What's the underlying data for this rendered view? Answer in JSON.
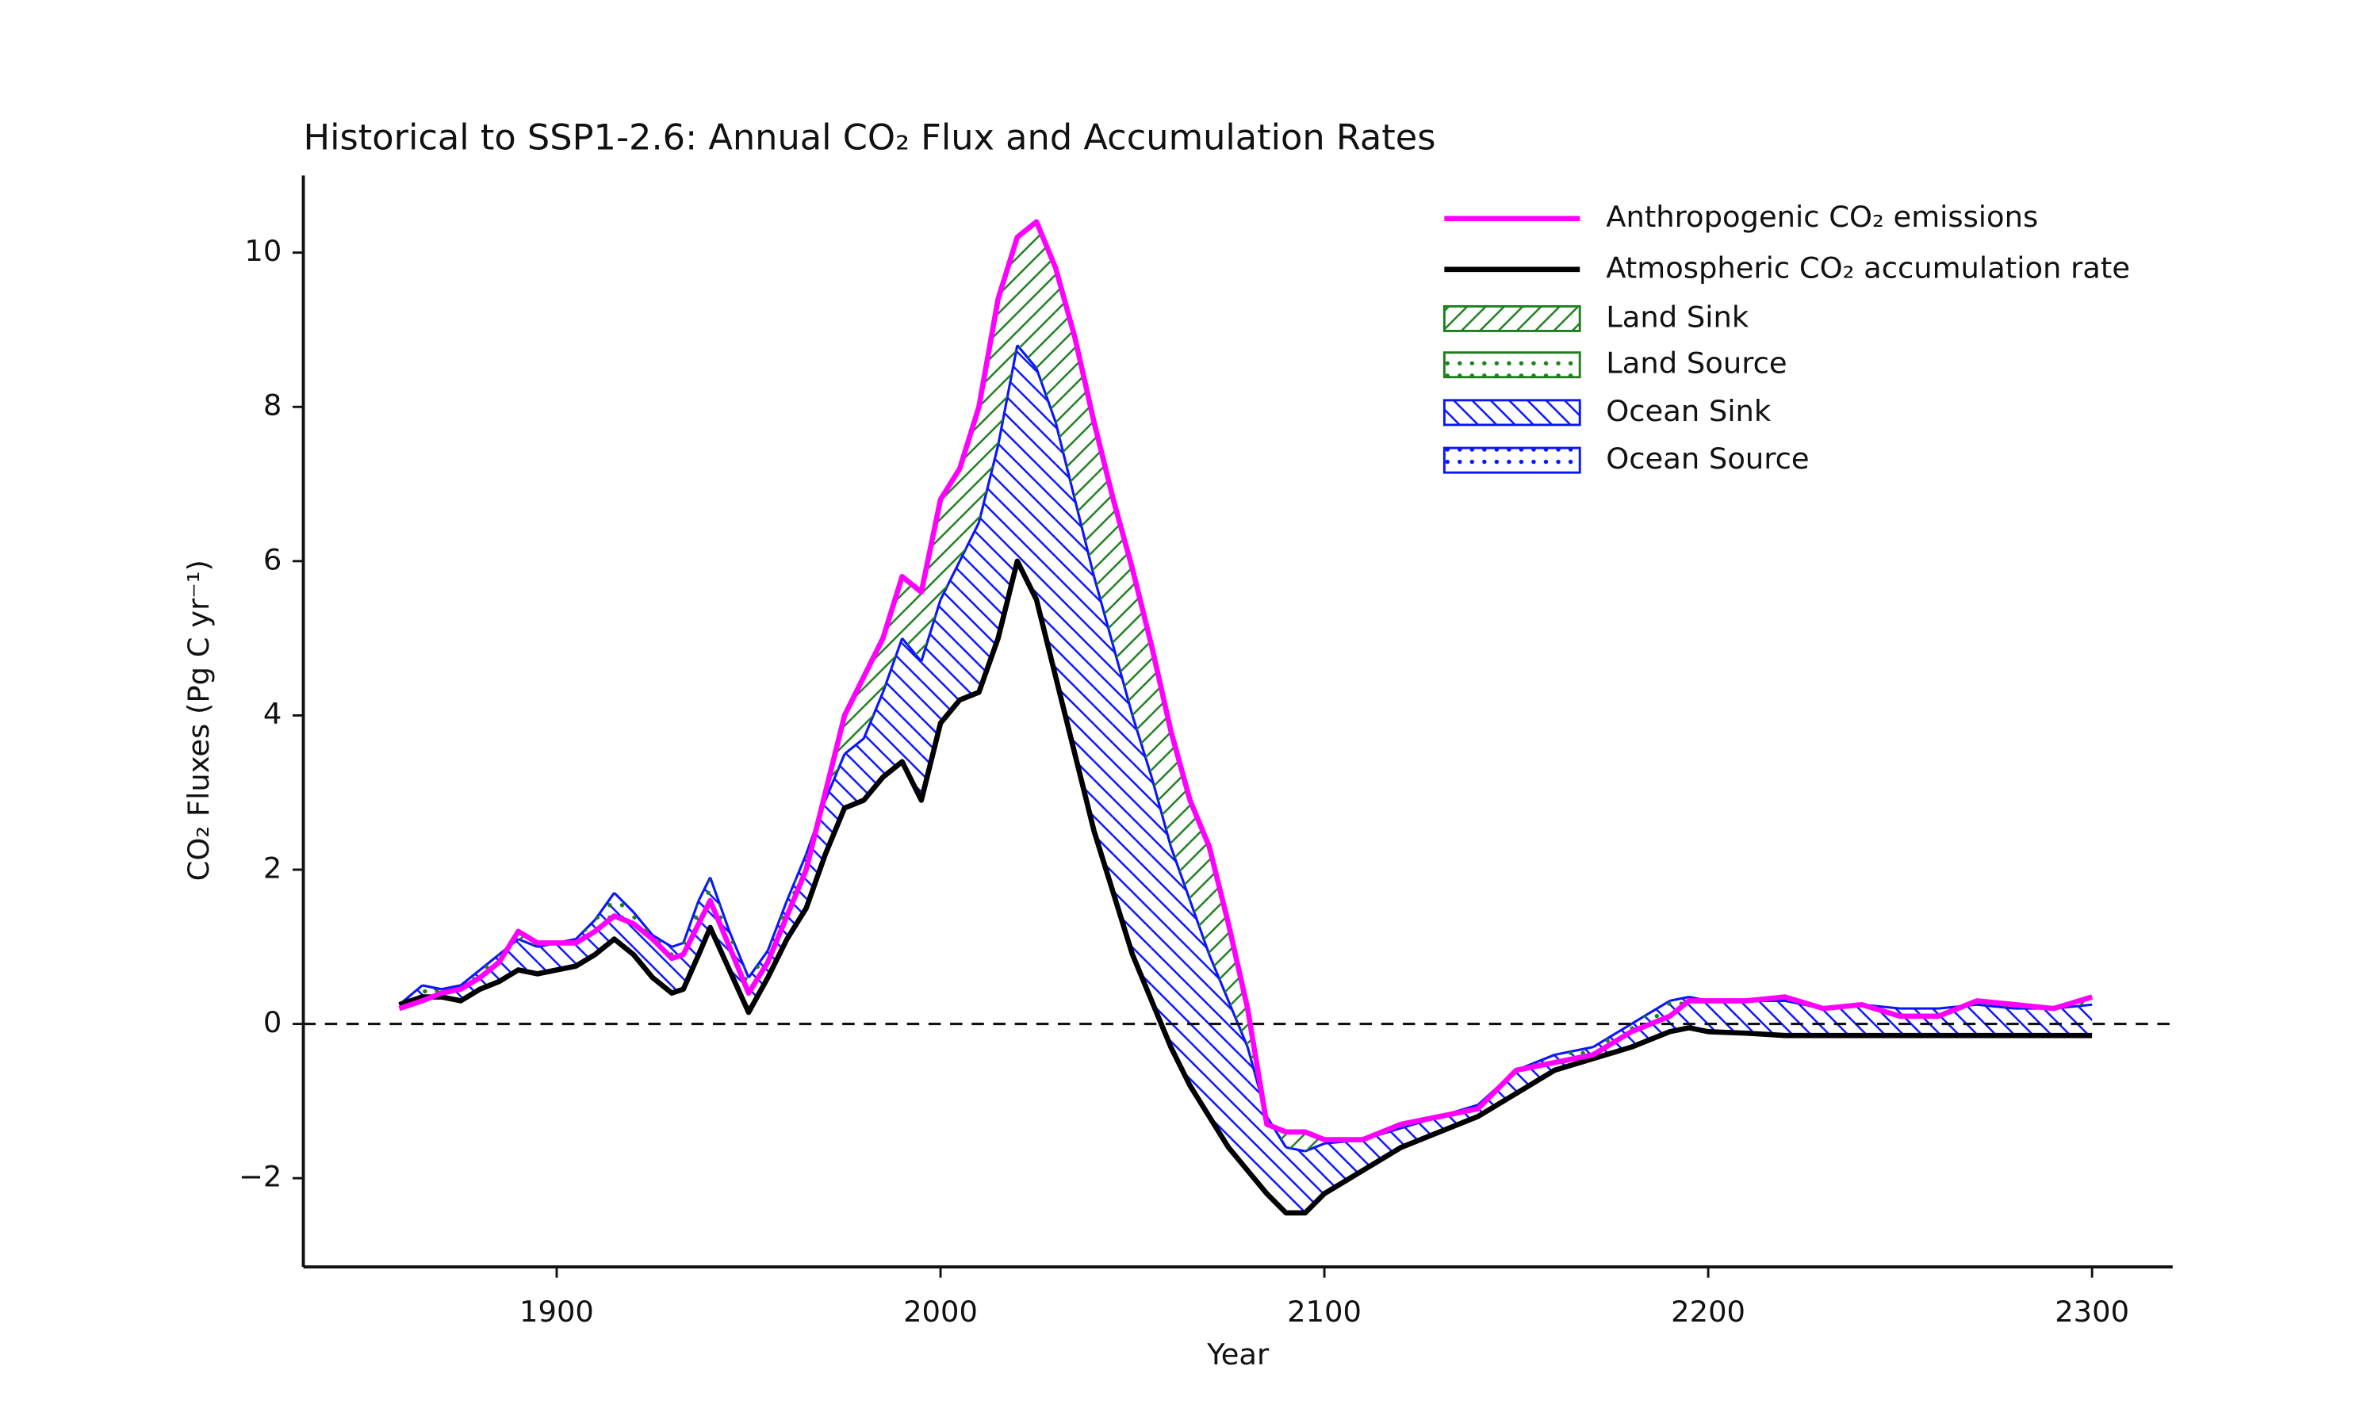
{
  "chart_data": {
    "type": "line",
    "title": "Historical to SSP1-2.6: Annual CO₂ Flux and Accumulation Rates",
    "xlabel": "Year",
    "ylabel": "CO₂ Fluxes (Pg C yr⁻¹)",
    "x": [
      1859,
      1865,
      1870,
      1875,
      1880,
      1885,
      1890,
      1895,
      1900,
      1905,
      1910,
      1915,
      1920,
      1925,
      1930,
      1933,
      1937,
      1940,
      1945,
      1950,
      1955,
      1960,
      1965,
      1970,
      1975,
      1980,
      1985,
      1990,
      1995,
      2000,
      2005,
      2010,
      2015,
      2020,
      2025,
      2030,
      2035,
      2040,
      2045,
      2050,
      2055,
      2060,
      2065,
      2070,
      2075,
      2080,
      2085,
      2090,
      2095,
      2100,
      2110,
      2120,
      2130,
      2140,
      2150,
      2160,
      2170,
      2180,
      2190,
      2195,
      2200,
      2210,
      2220,
      2230,
      2240,
      2250,
      2260,
      2270,
      2280,
      2290,
      2300
    ],
    "series": [
      {
        "name": "Anthropogenic CO₂ emissions",
        "color": "#ff00ff",
        "values": [
          0.2,
          0.3,
          0.4,
          0.45,
          0.6,
          0.8,
          1.2,
          1.05,
          1.05,
          1.05,
          1.2,
          1.4,
          1.3,
          1.1,
          0.85,
          0.9,
          1.3,
          1.6,
          1.0,
          0.4,
          0.8,
          1.4,
          2.0,
          3.0,
          4.0,
          4.5,
          5.0,
          5.8,
          5.6,
          6.8,
          7.2,
          8.0,
          9.4,
          10.2,
          10.4,
          9.8,
          8.9,
          7.8,
          6.8,
          5.9,
          4.9,
          3.8,
          2.9,
          2.3,
          1.3,
          0.2,
          -1.3,
          -1.4,
          -1.4,
          -1.5,
          -1.5,
          -1.3,
          -1.2,
          -1.1,
          -0.6,
          -0.5,
          -0.4,
          -0.1,
          0.1,
          0.3,
          0.3,
          0.3,
          0.35,
          0.2,
          0.25,
          0.1,
          0.1,
          0.3,
          0.25,
          0.2,
          0.35
        ]
      },
      {
        "name": "Atmospheric CO₂ accumulation rate",
        "color": "#000000",
        "values": [
          0.25,
          0.35,
          0.35,
          0.3,
          0.45,
          0.55,
          0.7,
          0.65,
          0.7,
          0.75,
          0.9,
          1.1,
          0.9,
          0.6,
          0.4,
          0.45,
          0.9,
          1.25,
          0.7,
          0.15,
          0.6,
          1.1,
          1.5,
          2.2,
          2.8,
          2.9,
          3.2,
          3.4,
          2.9,
          3.9,
          4.2,
          4.3,
          5.0,
          6.0,
          5.5,
          4.5,
          3.5,
          2.5,
          1.7,
          0.9,
          0.3,
          -0.3,
          -0.8,
          -1.2,
          -1.6,
          -1.9,
          -2.2,
          -2.45,
          -2.45,
          -2.2,
          -1.9,
          -1.6,
          -1.4,
          -1.2,
          -0.9,
          -0.6,
          -0.45,
          -0.3,
          -0.1,
          -0.05,
          -0.1,
          -0.12,
          -0.15,
          -0.15,
          -0.15,
          -0.15,
          -0.15,
          -0.15,
          -0.15,
          -0.15,
          -0.15
        ]
      },
      {
        "name": "Ocean Sink",
        "negative_name": "Ocean Source",
        "color": "#0a14ff",
        "values": [
          0,
          0.15,
          0.1,
          0.2,
          0.25,
          0.35,
          0.4,
          0.35,
          0.35,
          0.35,
          0.45,
          0.6,
          0.55,
          0.55,
          0.6,
          0.6,
          0.7,
          0.65,
          0.5,
          0.45,
          0.35,
          0.5,
          0.7,
          0.7,
          0.7,
          0.8,
          1.1,
          1.6,
          1.8,
          1.6,
          1.8,
          2.2,
          2.5,
          2.8,
          3.0,
          3.3,
          3.3,
          3.3,
          3.2,
          3.1,
          2.9,
          2.6,
          2.4,
          2.1,
          1.9,
          1.6,
          1.0,
          0.85,
          0.8,
          0.65,
          0.4,
          0.25,
          0.2,
          0.15,
          0.3,
          0.2,
          0.15,
          0.3,
          0.4,
          0.4,
          0.4,
          0.42,
          0.45,
          0.35,
          0.4,
          0.35,
          0.35,
          0.4,
          0.35,
          0.35,
          0.4
        ]
      },
      {
        "name": "Land Sink",
        "negative_name": "Land Source",
        "color": "#1f7f1f",
        "values": [
          -0.05,
          -0.2,
          -0.05,
          -0.05,
          -0.1,
          -0.1,
          0.1,
          0.05,
          0,
          -0.05,
          -0.15,
          -0.3,
          -0.15,
          -0.05,
          -0.15,
          -0.15,
          -0.3,
          -0.3,
          -0.2,
          -0.2,
          -0.15,
          -0.2,
          -0.2,
          0.1,
          0.5,
          0.8,
          0.7,
          0.8,
          0.9,
          1.3,
          1.2,
          1.5,
          1.9,
          1.4,
          1.9,
          2.0,
          2.1,
          2.0,
          1.9,
          1.9,
          1.7,
          1.5,
          1.3,
          1.4,
          1.0,
          0.5,
          -0.1,
          0.2,
          0.25,
          0.05,
          0,
          0.05,
          0,
          -0.05,
          0,
          -0.1,
          -0.1,
          -0.1,
          -0.2,
          -0.05,
          0,
          0,
          0.05,
          0,
          0,
          -0.1,
          -0.1,
          0.05,
          0.05,
          0,
          0.1
        ]
      }
    ],
    "zero_line": 0,
    "xlim": [
      1834,
      2321
    ],
    "ylim": [
      -3.15,
      11
    ],
    "xticks": [
      1900,
      2000,
      2100,
      2200,
      2300
    ],
    "yticks": [
      {
        "value": -2,
        "label": "−2"
      },
      0,
      2,
      4,
      6,
      8,
      10
    ],
    "legend": "upper right"
  }
}
